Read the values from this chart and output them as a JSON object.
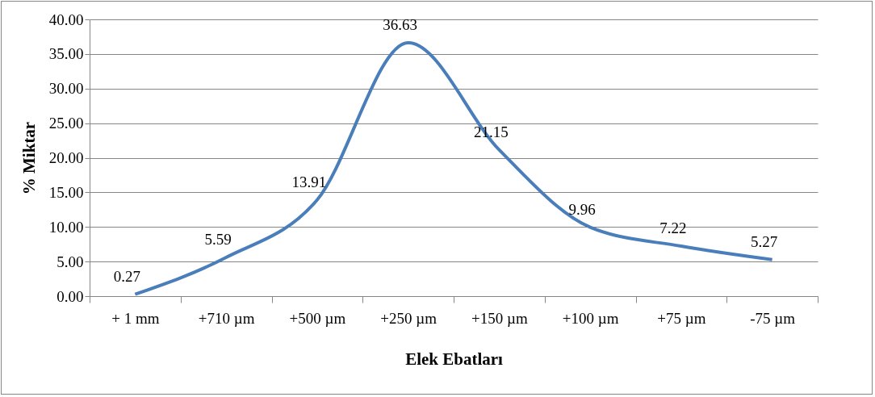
{
  "chart_data": {
    "type": "line",
    "xlabel": "Elek Ebatları",
    "ylabel": "% Miktar",
    "categories": [
      "+ 1 mm",
      "+710 µm",
      "+500 µm",
      "+250 µm",
      "+150 µm",
      "+100 µm",
      "+75 µm",
      "-75 µm"
    ],
    "series": [
      {
        "color": "#4a7ebb",
        "values": [
          0.27,
          5.59,
          13.91,
          36.63,
          21.15,
          9.96,
          7.22,
          5.27
        ]
      }
    ],
    "ylim": [
      0,
      40
    ],
    "yticks": [
      {
        "value": 0,
        "label": "0.00"
      },
      {
        "value": 5,
        "label": "5.00"
      },
      {
        "value": 10,
        "label": "10.00"
      },
      {
        "value": 15,
        "label": "15.00"
      },
      {
        "value": 20,
        "label": "20.00"
      },
      {
        "value": 25,
        "label": "25.00"
      },
      {
        "value": 30,
        "label": "30.00"
      },
      {
        "value": 35,
        "label": "35.00"
      },
      {
        "value": 40,
        "label": "40.00"
      }
    ],
    "grid": "y",
    "data_labels": true,
    "legend": false,
    "marker": "none",
    "line_style": "solid"
  }
}
